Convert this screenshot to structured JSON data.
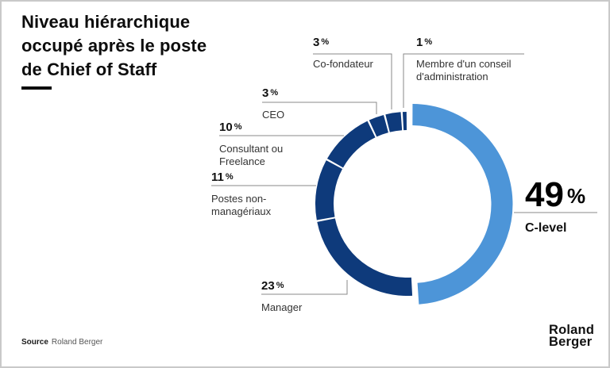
{
  "page": {
    "title": "Niveau hiérarchique occupé après le poste de Chief of Staff",
    "source_label": "Source",
    "source_value": "Roland Berger",
    "logo_line1": "Roland",
    "logo_line2": "Berger"
  },
  "chart_data": {
    "type": "pie",
    "subtype": "donut",
    "title": "Niveau hiérarchique occupé après le poste de Chief of Staff",
    "unit": "%",
    "percent_sign": "%",
    "start_angle_deg_from_top": 0,
    "direction": "clockwise",
    "highlighted_segment": "C-level",
    "colors": {
      "highlight": "#4d95d8",
      "base": "#0e3a7b",
      "leader_line": "#8a8a8a"
    },
    "segments": [
      {
        "label": "C-level",
        "value": 49,
        "color": "#4d95d8",
        "highlighted": true
      },
      {
        "label": "Manager",
        "value": 23,
        "color": "#0e3a7b",
        "highlighted": false
      },
      {
        "label": "Postes non-managériaux",
        "value": 11,
        "color": "#0e3a7b",
        "highlighted": false
      },
      {
        "label": "Consultant ou Freelance",
        "value": 10,
        "color": "#0e3a7b",
        "highlighted": false
      },
      {
        "label": "CEO",
        "value": 3,
        "color": "#0e3a7b",
        "highlighted": false
      },
      {
        "label": "Co-fondateur",
        "value": 3,
        "color": "#0e3a7b",
        "highlighted": false
      },
      {
        "label": "Membre d'un conseil d'administration",
        "value": 1,
        "color": "#0e3a7b",
        "highlighted": false
      }
    ]
  }
}
